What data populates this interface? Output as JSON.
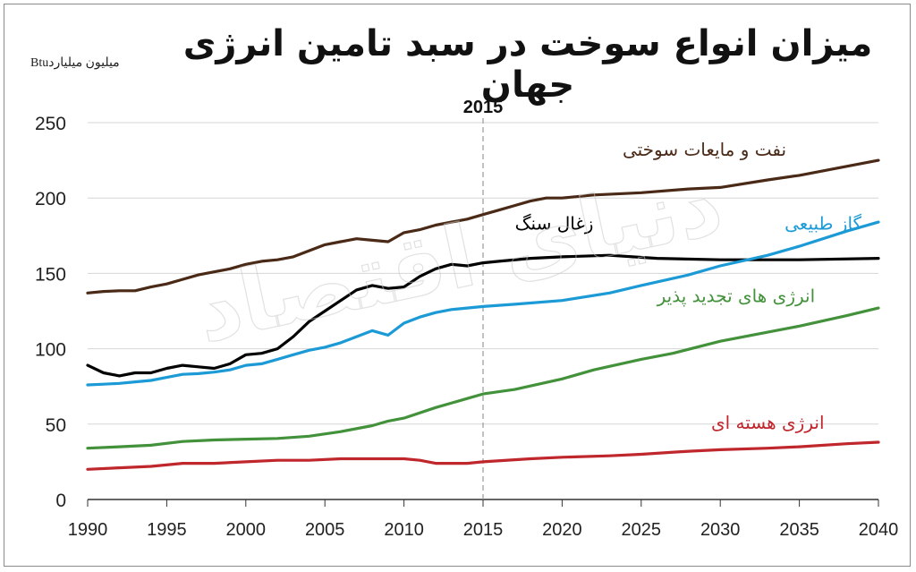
{
  "title": "میزان انواع سوخت در سبد تامین انرژی جهان",
  "unit_label": "میلیون میلیاردBtu",
  "watermark": "دنیای اقتصاد",
  "chart_data": {
    "type": "line",
    "title": "میزان انواع سوخت در سبد تامین انرژی جهان",
    "ylabel": "میلیون میلیاردBtu",
    "xlim": [
      1990,
      2040
    ],
    "ylim": [
      0,
      250
    ],
    "x_ticks": [
      1990,
      1995,
      2000,
      2005,
      2010,
      2015,
      2020,
      2025,
      2030,
      2035,
      2040
    ],
    "y_ticks": [
      0,
      50,
      100,
      150,
      200,
      250
    ],
    "grid": "horizontal",
    "reference_line": {
      "x": 2015,
      "label": "2015"
    },
    "series": [
      {
        "name": "نفت و مایعات سوختی",
        "color": "#4a2a17",
        "points": [
          [
            1990,
            137
          ],
          [
            1991,
            138
          ],
          [
            1992,
            138.5
          ],
          [
            1993,
            138.5
          ],
          [
            1994,
            141
          ],
          [
            1995,
            143
          ],
          [
            1996,
            146
          ],
          [
            1997,
            149
          ],
          [
            1998,
            151
          ],
          [
            1999,
            153
          ],
          [
            2000,
            156
          ],
          [
            2001,
            158
          ],
          [
            2002,
            159
          ],
          [
            2003,
            161
          ],
          [
            2004,
            165
          ],
          [
            2005,
            169
          ],
          [
            2006,
            171
          ],
          [
            2007,
            173
          ],
          [
            2008,
            172
          ],
          [
            2009,
            171
          ],
          [
            2010,
            177
          ],
          [
            2011,
            179
          ],
          [
            2012,
            182
          ],
          [
            2013,
            184
          ],
          [
            2014,
            186
          ],
          [
            2015,
            189
          ],
          [
            2016,
            192
          ],
          [
            2017,
            195
          ],
          [
            2018,
            198
          ],
          [
            2019,
            200
          ],
          [
            2020,
            200
          ],
          [
            2022,
            202
          ],
          [
            2025,
            203.5
          ],
          [
            2028,
            206
          ],
          [
            2030,
            207
          ],
          [
            2033,
            212
          ],
          [
            2035,
            215
          ],
          [
            2038,
            221
          ],
          [
            2040,
            225
          ]
        ]
      },
      {
        "name": "زغال سنگ",
        "color": "#000000",
        "points": [
          [
            1990,
            89
          ],
          [
            1991,
            84
          ],
          [
            1992,
            82
          ],
          [
            1993,
            84
          ],
          [
            1994,
            84
          ],
          [
            1995,
            87
          ],
          [
            1996,
            89
          ],
          [
            1997,
            88
          ],
          [
            1998,
            87
          ],
          [
            1999,
            90
          ],
          [
            2000,
            96
          ],
          [
            2001,
            97
          ],
          [
            2002,
            100
          ],
          [
            2003,
            108
          ],
          [
            2004,
            118
          ],
          [
            2005,
            125
          ],
          [
            2006,
            132
          ],
          [
            2007,
            139
          ],
          [
            2008,
            142
          ],
          [
            2009,
            140
          ],
          [
            2010,
            141
          ],
          [
            2011,
            148
          ],
          [
            2012,
            153
          ],
          [
            2013,
            156
          ],
          [
            2014,
            155
          ],
          [
            2015,
            157
          ],
          [
            2016,
            158
          ],
          [
            2018,
            160
          ],
          [
            2020,
            161
          ],
          [
            2023,
            162
          ],
          [
            2026,
            160
          ],
          [
            2030,
            159
          ],
          [
            2035,
            159
          ],
          [
            2040,
            160
          ]
        ]
      },
      {
        "name": "گاز طبیعی",
        "color": "#1b9ad6",
        "points": [
          [
            1990,
            76
          ],
          [
            1991,
            76.5
          ],
          [
            1992,
            77
          ],
          [
            1993,
            78
          ],
          [
            1994,
            79
          ],
          [
            1995,
            81
          ],
          [
            1996,
            83
          ],
          [
            1997,
            83.5
          ],
          [
            1998,
            84.5
          ],
          [
            1999,
            86
          ],
          [
            2000,
            89
          ],
          [
            2001,
            90
          ],
          [
            2002,
            93
          ],
          [
            2003,
            96
          ],
          [
            2004,
            99
          ],
          [
            2005,
            101
          ],
          [
            2006,
            104
          ],
          [
            2007,
            108
          ],
          [
            2008,
            112
          ],
          [
            2009,
            109
          ],
          [
            2010,
            117
          ],
          [
            2011,
            121
          ],
          [
            2012,
            124
          ],
          [
            2013,
            126
          ],
          [
            2014,
            127
          ],
          [
            2015,
            128
          ],
          [
            2017,
            129.5
          ],
          [
            2020,
            132
          ],
          [
            2023,
            137
          ],
          [
            2025,
            142
          ],
          [
            2028,
            149
          ],
          [
            2030,
            155
          ],
          [
            2033,
            162
          ],
          [
            2035,
            168
          ],
          [
            2038,
            178
          ],
          [
            2040,
            184
          ]
        ]
      },
      {
        "name": "انرژی های تجدید پذیر",
        "color": "#43923b",
        "points": [
          [
            1990,
            34
          ],
          [
            1992,
            35
          ],
          [
            1994,
            36
          ],
          [
            1996,
            38.5
          ],
          [
            1998,
            39.5
          ],
          [
            2000,
            40
          ],
          [
            2002,
            40.5
          ],
          [
            2004,
            42
          ],
          [
            2006,
            45
          ],
          [
            2008,
            49
          ],
          [
            2009,
            52
          ],
          [
            2010,
            54
          ],
          [
            2012,
            61
          ],
          [
            2014,
            67
          ],
          [
            2015,
            70
          ],
          [
            2017,
            73
          ],
          [
            2020,
            80
          ],
          [
            2022,
            86
          ],
          [
            2025,
            93
          ],
          [
            2027,
            97
          ],
          [
            2030,
            105
          ],
          [
            2033,
            111
          ],
          [
            2035,
            115
          ],
          [
            2038,
            122
          ],
          [
            2040,
            127
          ]
        ]
      },
      {
        "name": "انرژی هسته ای",
        "color": "#c0272d",
        "points": [
          [
            1990,
            20
          ],
          [
            1992,
            21
          ],
          [
            1994,
            22
          ],
          [
            1996,
            24
          ],
          [
            1998,
            24
          ],
          [
            2000,
            25
          ],
          [
            2002,
            26
          ],
          [
            2004,
            26
          ],
          [
            2006,
            27
          ],
          [
            2008,
            27
          ],
          [
            2010,
            27
          ],
          [
            2011,
            26
          ],
          [
            2012,
            24
          ],
          [
            2014,
            24
          ],
          [
            2015,
            25
          ],
          [
            2018,
            27
          ],
          [
            2020,
            28
          ],
          [
            2023,
            29
          ],
          [
            2025,
            30
          ],
          [
            2028,
            32
          ],
          [
            2030,
            33
          ],
          [
            2033,
            34
          ],
          [
            2035,
            35
          ],
          [
            2038,
            37
          ],
          [
            2040,
            38
          ]
        ]
      }
    ],
    "labels": [
      {
        "series": "نفت و مایعات سوختی",
        "text": "نفت و مایعات سوختی",
        "color": "#4a2a17",
        "x": 2029,
        "y": 228
      },
      {
        "series": "زغال سنگ",
        "text": "زغال سنگ",
        "color": "#000000",
        "x": 2019.5,
        "y": 179
      },
      {
        "series": "گاز طبیعی",
        "text": "گاز طبیعی",
        "color": "#1b9ad6",
        "x": 2036.5,
        "y": 179
      },
      {
        "series": "انرژی های تجدید پذیر",
        "text": "انرژی های تجدید پذیر",
        "color": "#43923b",
        "x": 2031,
        "y": 131
      },
      {
        "series": "انرژی هسته ای",
        "text": "انرژی هسته ای",
        "color": "#c0272d",
        "x": 2033,
        "y": 47
      }
    ]
  }
}
